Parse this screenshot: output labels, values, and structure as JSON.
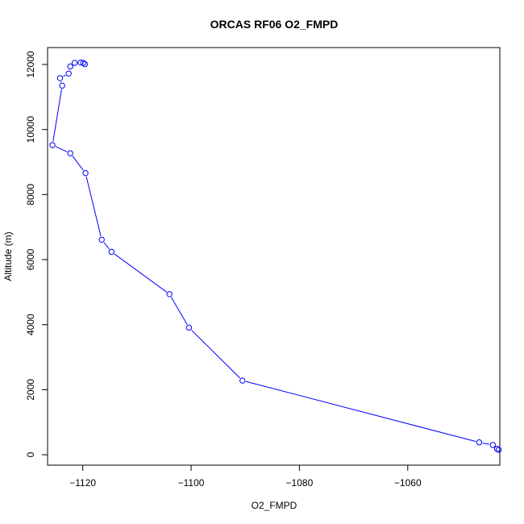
{
  "chart_data": {
    "type": "line",
    "title": "ORCAS RF06 O2_FMPD",
    "xlabel": "O2_FMPD",
    "ylabel": "Altitude (m)",
    "xlim": [
      -1126.5,
      -1043
    ],
    "ylim": [
      -320,
      12520
    ],
    "xticks": [
      -1120,
      -1100,
      -1080,
      -1060
    ],
    "yticks": [
      0,
      2000,
      4000,
      6000,
      8000,
      10000,
      12000
    ],
    "markers": "open-circle",
    "color": "#0000ff",
    "grid": false,
    "x": [
      -1043.2,
      -1043.5,
      -1044.3,
      -1046.8,
      -1090.5,
      -1100.4,
      -1104.0,
      -1114.7,
      -1116.5,
      -1119.5,
      -1122.3,
      -1125.6,
      -1123.8,
      -1124.2,
      -1122.6,
      -1122.3,
      -1121.5,
      -1120.4,
      -1119.9,
      -1119.6
    ],
    "y": [
      150,
      180,
      300,
      380,
      2280,
      3910,
      4940,
      6240,
      6610,
      8660,
      9270,
      9520,
      11350,
      11580,
      11720,
      11940,
      12050,
      12060,
      12050,
      12010
    ]
  }
}
